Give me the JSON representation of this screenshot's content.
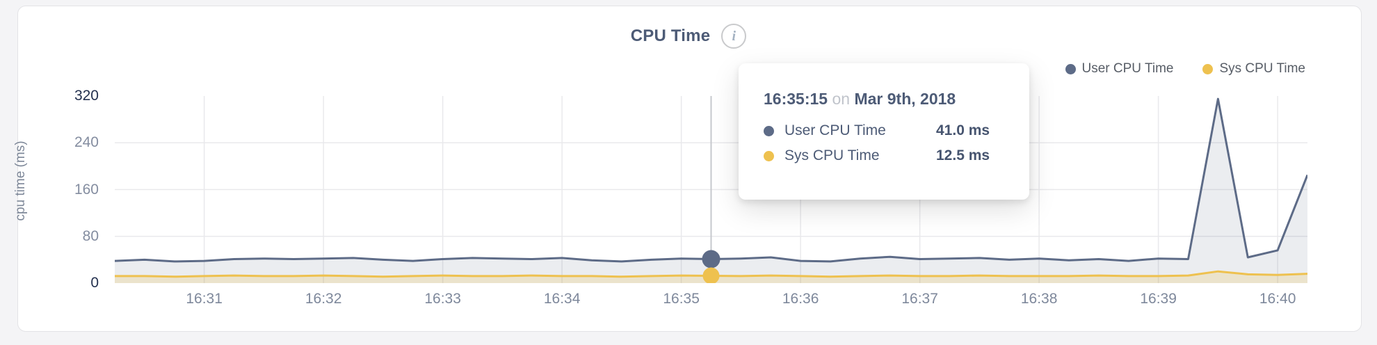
{
  "page": {
    "background": "#f4f4f6",
    "card_background": "#ffffff"
  },
  "header": {
    "title": "CPU Time",
    "info_icon_glyph": "i"
  },
  "legend": {
    "items": [
      {
        "label": "User CPU Time",
        "color": "#5d6b87"
      },
      {
        "label": "Sys CPU Time",
        "color": "#eec14f"
      }
    ]
  },
  "tooltip": {
    "time": "16:35:15",
    "connector": "on",
    "date": "Mar 9th, 2018",
    "rows": [
      {
        "label": "User CPU Time",
        "value": "41.0 ms",
        "color": "#5d6b87"
      },
      {
        "label": "Sys CPU Time",
        "value": "12.5 ms",
        "color": "#eec14f"
      }
    ]
  },
  "chart_data": {
    "type": "area",
    "title": "CPU Time",
    "xlabel": "",
    "ylabel": "cpu time (ms)",
    "ylim": [
      0,
      320
    ],
    "yticks": [
      0,
      80,
      160,
      240,
      320
    ],
    "xticks": [
      "16:31",
      "16:32",
      "16:33",
      "16:34",
      "16:35",
      "16:36",
      "16:37",
      "16:38",
      "16:39",
      "16:40"
    ],
    "grid": true,
    "legend_position": "top-right",
    "x": [
      "16:30:15",
      "16:30:30",
      "16:30:45",
      "16:31:00",
      "16:31:15",
      "16:31:30",
      "16:31:45",
      "16:32:00",
      "16:32:15",
      "16:32:30",
      "16:32:45",
      "16:33:00",
      "16:33:15",
      "16:33:30",
      "16:33:45",
      "16:34:00",
      "16:34:15",
      "16:34:30",
      "16:34:45",
      "16:35:00",
      "16:35:15",
      "16:35:30",
      "16:35:45",
      "16:36:00",
      "16:36:15",
      "16:36:30",
      "16:36:45",
      "16:37:00",
      "16:37:15",
      "16:37:30",
      "16:37:45",
      "16:38:00",
      "16:38:15",
      "16:38:30",
      "16:38:45",
      "16:39:00",
      "16:39:15",
      "16:39:30",
      "16:39:45",
      "16:40:00",
      "16:40:15"
    ],
    "series": [
      {
        "name": "User CPU Time",
        "color": "#5d6b87",
        "fill": "rgba(93,107,135,0.12)",
        "values": [
          38,
          40,
          37,
          38,
          41,
          42,
          41,
          42,
          43,
          40,
          38,
          41,
          43,
          42,
          41,
          43,
          39,
          37,
          40,
          42,
          41,
          42,
          44,
          38,
          37,
          42,
          45,
          41,
          42,
          43,
          40,
          42,
          39,
          41,
          38,
          42,
          41,
          315,
          44,
          56,
          185
        ]
      },
      {
        "name": "Sys CPU Time",
        "color": "#eec14f",
        "fill": "rgba(238,193,79,0.22)",
        "values": [
          12,
          12,
          11,
          12,
          13,
          12,
          12,
          13,
          12,
          11,
          12,
          13,
          12,
          12,
          13,
          12,
          12,
          11,
          12,
          13,
          12.5,
          12,
          13,
          12,
          11,
          12,
          13,
          12,
          12,
          13,
          12,
          12,
          12,
          13,
          12,
          12,
          13,
          20,
          15,
          14,
          16
        ]
      }
    ],
    "hover": {
      "index": 20,
      "time": "16:35:15",
      "user_value_ms": 41.0,
      "sys_value_ms": 12.5
    }
  },
  "colors": {
    "grid": "#e9e9ec",
    "crosshair": "#c6c8cd",
    "axis_tick": "#7e889b",
    "axis_tick_edge": "#24314f",
    "title_text": "#4d5b76"
  }
}
